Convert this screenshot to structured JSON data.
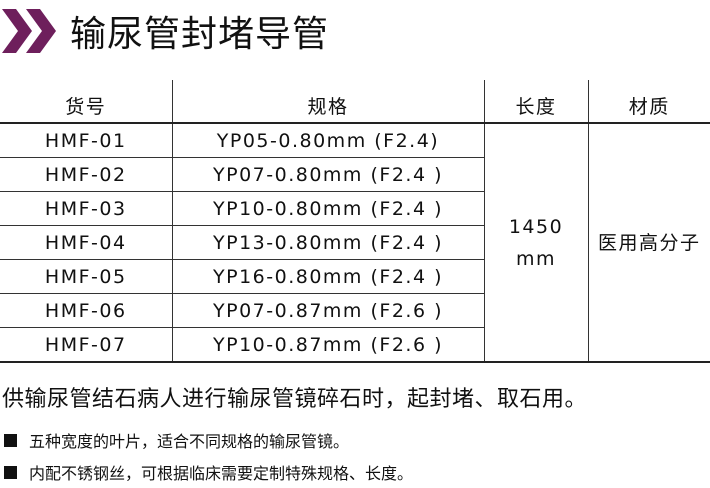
{
  "title": "输尿管封堵导管",
  "accent_color": "#6e1f5c",
  "table": {
    "headers": [
      "货号",
      "规格",
      "长度",
      "材质"
    ],
    "rows": [
      {
        "code": "HMF-01",
        "spec": "YP05-0.80mm (F2.4)"
      },
      {
        "code": "HMF-02",
        "spec": "YP07-0.80mm (F2.4 )"
      },
      {
        "code": "HMF-03",
        "spec": "YP10-0.80mm (F2.4 )"
      },
      {
        "code": "HMF-04",
        "spec": "YP13-0.80mm (F2.4 )"
      },
      {
        "code": "HMF-05",
        "spec": "YP16-0.80mm (F2.4 )"
      },
      {
        "code": "HMF-06",
        "spec": "YP07-0.87mm (F2.6 )"
      },
      {
        "code": "HMF-07",
        "spec": "YP10-0.87mm (F2.6 )"
      }
    ],
    "length_value": "1450",
    "length_unit": "mm",
    "material": "医用高分子"
  },
  "description": "供输尿管结石病人进行输尿管镜碎石时，起封堵、取石用。",
  "bullets": [
    "五种宽度的叶片，适合不同规格的输尿管镜。",
    "内配不锈钢丝，可根据临床需要定制特殊规格、长度。"
  ]
}
